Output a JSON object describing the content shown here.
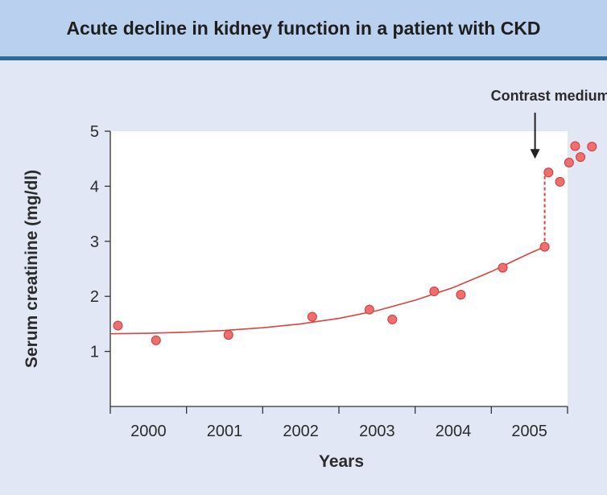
{
  "chart_data": {
    "type": "scatter",
    "title": "Acute decline in kidney function in a patient with CKD",
    "xlabel": "Years",
    "ylabel": "Serum creatinine (mg/dl)",
    "ylim": [
      0,
      5
    ],
    "xlim": [
      1999.5,
      2005.5
    ],
    "yticks": [
      "1",
      "2",
      "3",
      "4",
      "5"
    ],
    "xticks": [
      2000,
      2001,
      2002,
      2003,
      2004,
      2005
    ],
    "xtick_labels": [
      "2000",
      "2001",
      "2002",
      "2003",
      "2004",
      "2005"
    ],
    "points": [
      {
        "x": 1999.6,
        "y": 1.47
      },
      {
        "x": 2000.1,
        "y": 1.2
      },
      {
        "x": 2001.05,
        "y": 1.3
      },
      {
        "x": 2002.15,
        "y": 1.63
      },
      {
        "x": 2002.9,
        "y": 1.76
      },
      {
        "x": 2003.2,
        "y": 1.58
      },
      {
        "x": 2003.75,
        "y": 2.09
      },
      {
        "x": 2004.1,
        "y": 2.03
      },
      {
        "x": 2004.65,
        "y": 2.52
      },
      {
        "x": 2005.2,
        "y": 2.9
      },
      {
        "x": 2005.25,
        "y": 4.25
      },
      {
        "x": 2005.4,
        "y": 4.08
      },
      {
        "x": 2005.52,
        "y": 4.43
      },
      {
        "x": 2005.6,
        "y": 4.73
      },
      {
        "x": 2005.67,
        "y": 4.53
      },
      {
        "x": 2005.82,
        "y": 4.72
      }
    ],
    "trend_curve": [
      {
        "x": 1999.5,
        "y": 1.32
      },
      {
        "x": 2000.0,
        "y": 1.33
      },
      {
        "x": 2000.5,
        "y": 1.35
      },
      {
        "x": 2001.0,
        "y": 1.38
      },
      {
        "x": 2001.5,
        "y": 1.43
      },
      {
        "x": 2002.0,
        "y": 1.5
      },
      {
        "x": 2002.5,
        "y": 1.6
      },
      {
        "x": 2003.0,
        "y": 1.74
      },
      {
        "x": 2003.5,
        "y": 1.93
      },
      {
        "x": 2004.0,
        "y": 2.16
      },
      {
        "x": 2004.5,
        "y": 2.45
      },
      {
        "x": 2004.8,
        "y": 2.65
      },
      {
        "x": 2005.0,
        "y": 2.78
      },
      {
        "x": 2005.2,
        "y": 2.9
      }
    ],
    "acute_jump": {
      "x": 2005.2,
      "from": 2.9,
      "to": 4.25
    },
    "annotation": {
      "text": "Contrast medium",
      "x": 2005.2,
      "arrow_to_y": 4.5
    },
    "colors": {
      "point_fill": "#ef6f6f",
      "point_stroke": "#cc3b3b",
      "trend": "#d9443f",
      "header_bg": "#b9d0ee",
      "header_rule": "#2b6e9b",
      "page_bg": "#e2e7f6",
      "plot_bg": "#ffffff",
      "text": "#2b2b2b"
    }
  }
}
